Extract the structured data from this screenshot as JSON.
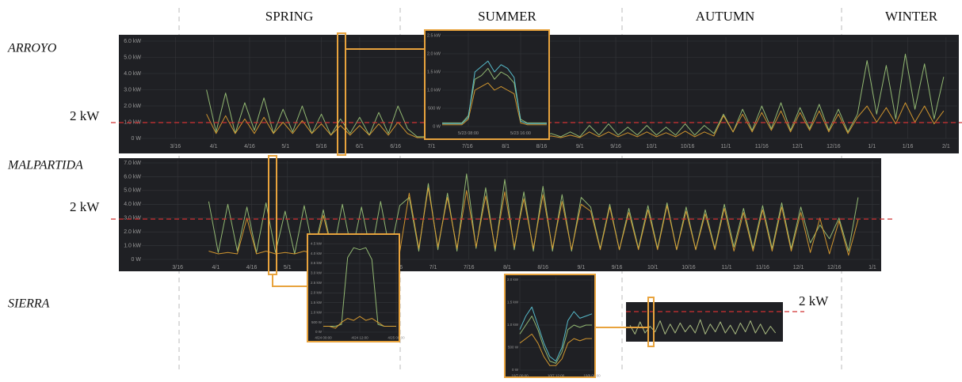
{
  "seasons": [
    "SPRING",
    "SUMMER",
    "AUTUMN",
    "WINTER"
  ],
  "chart_data": [
    {
      "type": "line",
      "title": "ARROYO",
      "annotation": "2 kW",
      "grid": true,
      "x": [
        28,
        32,
        36,
        40,
        44,
        48,
        52,
        56,
        60,
        64,
        68,
        72,
        76,
        80,
        84,
        88,
        92,
        96,
        100,
        104,
        108,
        112,
        116,
        120,
        124,
        128,
        132,
        136,
        140,
        144,
        148,
        152,
        156,
        160,
        164,
        168,
        172,
        176,
        180,
        184,
        188,
        192,
        196,
        200,
        204,
        208,
        212,
        216,
        220,
        224,
        228,
        232,
        236,
        240,
        244,
        248,
        252,
        256,
        260,
        264,
        268,
        272,
        276,
        280,
        284,
        288,
        292,
        296,
        300,
        304,
        308,
        312,
        316,
        320,
        324,
        328,
        332,
        336
      ],
      "xlim": [
        0,
        343
      ],
      "xticks": [
        {
          "value": 15,
          "label": "3/16"
        },
        {
          "value": 31,
          "label": "4/1"
        },
        {
          "value": 46,
          "label": "4/16"
        },
        {
          "value": 61,
          "label": "5/1"
        },
        {
          "value": 76,
          "label": "5/16"
        },
        {
          "value": 92,
          "label": "6/1"
        },
        {
          "value": 107,
          "label": "6/16"
        },
        {
          "value": 122,
          "label": "7/1"
        },
        {
          "value": 137,
          "label": "7/16"
        },
        {
          "value": 153,
          "label": "8/1"
        },
        {
          "value": 168,
          "label": "8/16"
        },
        {
          "value": 184,
          "label": "9/1"
        },
        {
          "value": 199,
          "label": "9/16"
        },
        {
          "value": 214,
          "label": "10/1"
        },
        {
          "value": 229,
          "label": "10/16"
        },
        {
          "value": 245,
          "label": "11/1"
        },
        {
          "value": 260,
          "label": "11/16"
        },
        {
          "value": 275,
          "label": "12/1"
        },
        {
          "value": 290,
          "label": "12/16"
        },
        {
          "value": 306,
          "label": "1/1"
        },
        {
          "value": 321,
          "label": "1/16"
        },
        {
          "value": 337,
          "label": "2/1"
        }
      ],
      "ylim": [
        0,
        6000
      ],
      "yticks": [
        {
          "value": 0,
          "label": "0 W"
        },
        {
          "value": 1000,
          "label": "1.0 kW"
        },
        {
          "value": 2000,
          "label": "2.0 kW"
        },
        {
          "value": 3000,
          "label": "3.0 kW"
        },
        {
          "value": 4000,
          "label": "4.0 kW"
        },
        {
          "value": 5000,
          "label": "5.0 kW"
        },
        {
          "value": 6000,
          "label": "6.0 kW"
        }
      ],
      "series": [
        {
          "color": "#9cc67a",
          "values": [
            3000,
            400,
            2800,
            300,
            2200,
            500,
            2500,
            300,
            1800,
            400,
            2000,
            300,
            1500,
            200,
            1200,
            300,
            1300,
            200,
            1600,
            300,
            2000,
            600,
            100,
            100,
            100,
            100,
            100,
            100,
            100,
            100,
            100,
            100,
            100,
            100,
            100,
            100,
            300,
            100,
            400,
            100,
            800,
            200,
            900,
            200,
            700,
            200,
            800,
            200,
            700,
            200,
            900,
            200,
            800,
            300,
            1500,
            400,
            1800,
            500,
            2000,
            600,
            2200,
            500,
            1900,
            600,
            2100,
            500,
            1800,
            400,
            1500,
            4800,
            1500,
            4500,
            1200,
            5200,
            1800,
            4600,
            1200,
            3800
          ]
        },
        {
          "color": "#e0a030",
          "values": [
            1500,
            300,
            1400,
            300,
            1200,
            300,
            1300,
            300,
            1000,
            300,
            1100,
            300,
            900,
            200,
            800,
            200,
            800,
            200,
            900,
            200,
            1000,
            300,
            50,
            50,
            50,
            50,
            50,
            50,
            50,
            50,
            50,
            50,
            50,
            50,
            50,
            50,
            150,
            50,
            200,
            50,
            400,
            100,
            400,
            100,
            350,
            100,
            400,
            100,
            350,
            100,
            450,
            100,
            400,
            150,
            1400,
            400,
            1500,
            400,
            1600,
            500,
            1700,
            400,
            1600,
            500,
            1700,
            400,
            1500,
            300,
            1300,
            2000,
            1000,
            1900,
            900,
            2200,
            1000,
            2000,
            900,
            1700
          ]
        }
      ]
    },
    {
      "type": "line",
      "title": "MALPARTIDA",
      "annotation": "2 kW",
      "grid": true,
      "x": [
        28,
        32,
        36,
        40,
        44,
        48,
        52,
        56,
        60,
        64,
        68,
        72,
        76,
        80,
        84,
        88,
        92,
        96,
        100,
        104,
        108,
        112,
        116,
        120,
        124,
        128,
        132,
        136,
        140,
        144,
        148,
        152,
        156,
        160,
        164,
        168,
        172,
        176,
        180,
        184,
        188,
        192,
        196,
        200,
        204,
        208,
        212,
        216,
        220,
        224,
        228,
        232,
        236,
        240,
        244,
        248,
        252,
        256,
        260,
        264,
        268,
        272,
        276,
        280,
        284,
        288,
        292,
        296,
        300
      ],
      "xlim": [
        0,
        310
      ],
      "xticks": [
        {
          "value": 15,
          "label": "3/16"
        },
        {
          "value": 31,
          "label": "4/1"
        },
        {
          "value": 46,
          "label": "4/16"
        },
        {
          "value": 61,
          "label": "5/1"
        },
        {
          "value": 76,
          "label": "5/16"
        },
        {
          "value": 92,
          "label": "6/1"
        },
        {
          "value": 107,
          "label": "6/16"
        },
        {
          "value": 122,
          "label": "7/1"
        },
        {
          "value": 137,
          "label": "7/16"
        },
        {
          "value": 153,
          "label": "8/1"
        },
        {
          "value": 168,
          "label": "8/16"
        },
        {
          "value": 184,
          "label": "9/1"
        },
        {
          "value": 199,
          "label": "9/16"
        },
        {
          "value": 214,
          "label": "10/1"
        },
        {
          "value": 229,
          "label": "10/16"
        },
        {
          "value": 245,
          "label": "11/1"
        },
        {
          "value": 260,
          "label": "11/16"
        },
        {
          "value": 275,
          "label": "12/1"
        },
        {
          "value": 290,
          "label": "12/16"
        },
        {
          "value": 306,
          "label": "1/1"
        }
      ],
      "ylim": [
        0,
        7000
      ],
      "yticks": [
        {
          "value": 0,
          "label": "0 W"
        },
        {
          "value": 1000,
          "label": "1.0 kW"
        },
        {
          "value": 2000,
          "label": "2.0 kW"
        },
        {
          "value": 3000,
          "label": "3.0 kW"
        },
        {
          "value": 4000,
          "label": "4.0 kW"
        },
        {
          "value": 5000,
          "label": "5.0 kW"
        },
        {
          "value": 6000,
          "label": "6.0 kW"
        },
        {
          "value": 7000,
          "label": "7.0 kW"
        }
      ],
      "series": [
        {
          "color": "#9cc67a",
          "values": [
            4200,
            500,
            4000,
            600,
            3800,
            500,
            4100,
            500,
            3500,
            400,
            3900,
            500,
            3600,
            400,
            4000,
            500,
            3800,
            400,
            4200,
            500,
            3900,
            4500,
            600,
            5500,
            700,
            4800,
            600,
            6200,
            800,
            5200,
            600,
            5800,
            700,
            4900,
            600,
            5300,
            600,
            4700,
            600,
            4500,
            3800,
            800,
            4000,
            700,
            3700,
            800,
            3900,
            800,
            4100,
            700,
            3800,
            700,
            3600,
            800,
            4000,
            900,
            3700,
            800,
            3900,
            800,
            4100,
            800,
            3800,
            1200,
            2500,
            1500,
            3000,
            600,
            4500
          ]
        },
        {
          "color": "#e0a030",
          "values": [
            600,
            400,
            500,
            400,
            3000,
            400,
            600,
            400,
            500,
            400,
            600,
            400,
            3200,
            400,
            600,
            400,
            500,
            400,
            600,
            400,
            500,
            4800,
            800,
            5200,
            900,
            4500,
            800,
            5000,
            900,
            4600,
            800,
            4900,
            900,
            4400,
            800,
            4700,
            800,
            4200,
            700,
            4000,
            3500,
            700,
            3800,
            700,
            3400,
            700,
            3600,
            700,
            3900,
            700,
            3500,
            700,
            3300,
            700,
            3700,
            600,
            3400,
            600,
            3600,
            600,
            3800,
            600,
            3400,
            500,
            3000,
            400,
            2800,
            300,
            2900
          ]
        }
      ]
    },
    {
      "type": "line",
      "title": "SIERRA",
      "annotation": "2 kW",
      "grid": false,
      "x": [
        0,
        2,
        4,
        6,
        8,
        10,
        12,
        14,
        16,
        18,
        20,
        22,
        24,
        26,
        28,
        30,
        32,
        34,
        36,
        38,
        40,
        42,
        44,
        46,
        48,
        50,
        52,
        54,
        56,
        58
      ],
      "xlim": [
        0,
        60
      ],
      "ylim": [
        0,
        3000
      ],
      "series": [
        {
          "color": "#b5c98a",
          "values": [
            1200,
            400,
            1500,
            500,
            1100,
            600,
            1600,
            400,
            1300,
            500,
            1400,
            600,
            1200,
            500,
            1700,
            400,
            1300,
            600,
            1500,
            500,
            1200,
            400,
            1400,
            600,
            1600,
            500,
            1300,
            400,
            1100,
            500
          ]
        }
      ]
    },
    {
      "type": "line",
      "grid": true,
      "x": [
        4,
        5,
        6,
        7,
        8,
        9,
        10,
        11,
        12,
        13,
        14,
        15,
        16,
        17,
        18,
        19,
        20
      ],
      "xlim": [
        4,
        20
      ],
      "xticks": [
        {
          "value": 8,
          "label": "5/23 08:00"
        },
        {
          "value": 16,
          "label": "5/23 16:00"
        }
      ],
      "ylim": [
        0,
        2500
      ],
      "yticks": [
        {
          "value": 0,
          "label": "0 W"
        },
        {
          "value": 500,
          "label": "500 W"
        },
        {
          "value": 1000,
          "label": "1.0 kW"
        },
        {
          "value": 1500,
          "label": "1.5 kW"
        },
        {
          "value": 2000,
          "label": "2.0 kW"
        },
        {
          "value": 2500,
          "label": "2.5 kW"
        }
      ],
      "series": [
        {
          "color": "#9cc67a",
          "values": [
            100,
            100,
            100,
            100,
            300,
            1300,
            1400,
            1600,
            1300,
            1500,
            1400,
            1200,
            200,
            100,
            100,
            100,
            100
          ]
        },
        {
          "color": "#e0a030",
          "values": [
            50,
            50,
            50,
            50,
            200,
            1000,
            1100,
            1200,
            1000,
            1100,
            1000,
            900,
            100,
            50,
            50,
            50,
            50
          ]
        },
        {
          "color": "#5bc8d8",
          "values": [
            80,
            80,
            80,
            80,
            250,
            1500,
            1650,
            1800,
            1500,
            1700,
            1600,
            1350,
            150,
            80,
            80,
            80,
            80
          ]
        }
      ]
    },
    {
      "type": "line",
      "grid": true,
      "x": [
        0,
        2,
        4,
        6,
        8,
        10,
        12,
        14,
        16,
        18,
        20,
        22,
        24
      ],
      "xlim": [
        0,
        24
      ],
      "xticks": [
        {
          "value": 0,
          "label": "4/24 00:00"
        },
        {
          "value": 12,
          "label": "4/24 12:00"
        },
        {
          "value": 24,
          "label": "4/25 00:00"
        }
      ],
      "ylim": [
        0,
        4750
      ],
      "yticks": [
        {
          "value": 0,
          "label": "0 W"
        },
        {
          "value": 500,
          "label": "500 W"
        },
        {
          "value": 1000,
          "label": "1.0 kW"
        },
        {
          "value": 1500,
          "label": "1.5 kW"
        },
        {
          "value": 2000,
          "label": "2.0 kW"
        },
        {
          "value": 2500,
          "label": "2.5 kW"
        },
        {
          "value": 3000,
          "label": "3.0 kW"
        },
        {
          "value": 3500,
          "label": "3.5 kW"
        },
        {
          "value": 4000,
          "label": "4.0 kW"
        },
        {
          "value": 4500,
          "label": "4.5 kW"
        }
      ],
      "series": [
        {
          "color": "#9cc67a",
          "values": [
            300,
            300,
            300,
            400,
            3800,
            4300,
            4200,
            4300,
            3700,
            400,
            300,
            300,
            300
          ]
        },
        {
          "color": "#e0a030",
          "values": [
            300,
            300,
            200,
            500,
            700,
            600,
            800,
            600,
            700,
            500,
            300,
            300,
            300
          ]
        }
      ]
    },
    {
      "type": "line",
      "grid": true,
      "x": [
        0,
        2,
        4,
        6,
        8,
        10,
        12,
        14,
        16,
        18,
        20,
        22,
        24
      ],
      "xlim": [
        0,
        24
      ],
      "xticks": [
        {
          "value": 0,
          "label": "10/7 00:00"
        },
        {
          "value": 12,
          "label": "10/7 12:00"
        },
        {
          "value": 24,
          "label": "10/8 00:00"
        }
      ],
      "ylim": [
        0,
        2000
      ],
      "yticks": [
        {
          "value": 0,
          "label": "0 W"
        },
        {
          "value": 500,
          "label": "500 W"
        },
        {
          "value": 1000,
          "label": "1.0 kW"
        },
        {
          "value": 1500,
          "label": "1.5 kW"
        },
        {
          "value": 2000,
          "label": "2.0 kW"
        }
      ],
      "series": [
        {
          "color": "#5bc8d8",
          "values": [
            900,
            1200,
            1400,
            1000,
            600,
            300,
            200,
            500,
            1100,
            1300,
            1150,
            1200,
            1250
          ]
        },
        {
          "color": "#9cc67a",
          "values": [
            800,
            1000,
            1200,
            900,
            500,
            200,
            150,
            400,
            900,
            1000,
            950,
            1000,
            1000
          ]
        },
        {
          "color": "#e0a030",
          "values": [
            600,
            700,
            800,
            600,
            300,
            100,
            100,
            250,
            600,
            700,
            650,
            700,
            700
          ]
        }
      ]
    }
  ]
}
